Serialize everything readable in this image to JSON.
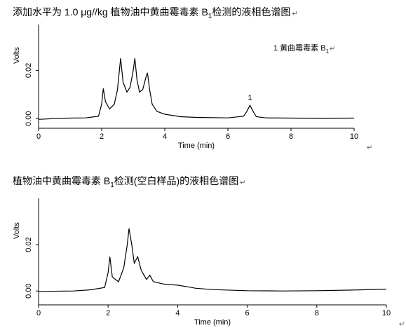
{
  "chart_data": [
    {
      "type": "line",
      "title": [
        "添加水平为 1.0 μg//kg  植物油中黄曲霉毒素 B",
        "1",
        "检测的液相色谱图"
      ],
      "legend_text": [
        "1 黄曲霉毒素 B",
        "1"
      ],
      "annotation": "1",
      "annotation_x": 6.7,
      "annotation_y": 0.0055,
      "x_label": "Time (min)",
      "y_label": "Volts",
      "color": "#000000",
      "x": [
        0,
        0.5,
        1,
        1.5,
        1.9,
        2.0,
        2.05,
        2.12,
        2.25,
        2.4,
        2.5,
        2.6,
        2.68,
        2.8,
        2.9,
        3.0,
        3.05,
        3.12,
        3.2,
        3.3,
        3.4,
        3.45,
        3.52,
        3.6,
        3.75,
        4,
        4.5,
        5,
        6,
        6.5,
        6.6,
        6.7,
        6.8,
        6.9,
        7.2,
        8,
        9,
        10
      ],
      "values": [
        -0.0003,
        0,
        0.0002,
        0.0003,
        0.001,
        0.006,
        0.0125,
        0.007,
        0.004,
        0.006,
        0.012,
        0.025,
        0.015,
        0.011,
        0.013,
        0.02,
        0.025,
        0.016,
        0.011,
        0.012,
        0.017,
        0.019,
        0.012,
        0.006,
        0.003,
        0.0018,
        0.0008,
        0.0005,
        0.0003,
        0.001,
        0.003,
        0.0055,
        0.003,
        0.0008,
        0.0003,
        0.0002,
        0.0001,
        0.0002
      ],
      "xlim": [
        0,
        10
      ],
      "xticks": [
        0,
        2,
        4,
        6,
        8,
        10
      ],
      "ylim": [
        -0.004,
        0.039
      ],
      "yticks": [
        {
          "value": 0,
          "label": "0.00"
        },
        {
          "value": 0.02,
          "label": "0.02"
        }
      ],
      "paragraph_mark": "↵"
    },
    {
      "type": "line",
      "title": [
        "植物油中黄曲霉毒素 B",
        "1",
        "检测(空白样品)的液相色谱图"
      ],
      "x_label": "Time (min)",
      "y_label": "Volts",
      "color": "#000000",
      "x": [
        0,
        1,
        1.5,
        1.9,
        2.0,
        2.05,
        2.12,
        2.3,
        2.45,
        2.55,
        2.6,
        2.68,
        2.75,
        2.85,
        2.95,
        3.1,
        3.2,
        3.3,
        3.6,
        4,
        4.4,
        4.5,
        5,
        6,
        7,
        8,
        9,
        10
      ],
      "values": [
        -0.0002,
        0,
        0.0005,
        0.0015,
        0.008,
        0.0148,
        0.006,
        0.004,
        0.01,
        0.02,
        0.027,
        0.02,
        0.012,
        0.0148,
        0.009,
        0.005,
        0.0068,
        0.004,
        0.003,
        0.0025,
        0.0015,
        0.0012,
        0.0006,
        0.0001,
        0,
        0.0001,
        0.0004,
        0.0008
      ],
      "xlim": [
        0,
        10
      ],
      "xticks": [
        0,
        2,
        4,
        6,
        8,
        10
      ],
      "ylim": [
        -0.006,
        0.04
      ],
      "yticks": [
        {
          "value": 0,
          "label": "0.00"
        },
        {
          "value": 0.02,
          "label": "0.02"
        }
      ],
      "paragraph_mark": "↵"
    }
  ]
}
